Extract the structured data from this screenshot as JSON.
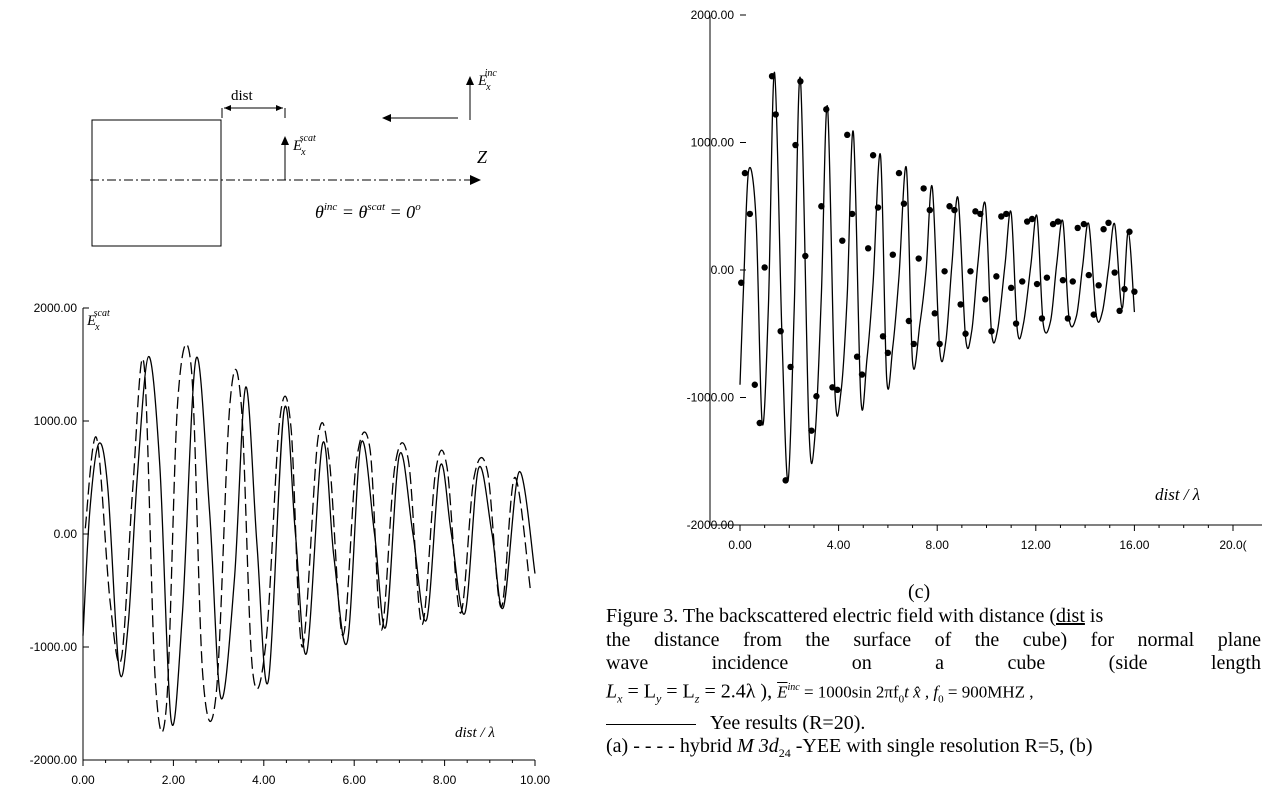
{
  "diagram": {
    "dist_label": "dist",
    "e_scat_label": "E",
    "e_scat_sub": "x",
    "e_scat_sup": "scat",
    "e_inc_label": "E",
    "e_inc_sub": "x",
    "e_inc_sup": "inc",
    "z_label": "Z",
    "angle_eq": "θ",
    "angle_eq_sup1": "inc",
    "angle_eq_mid": " = θ",
    "angle_eq_sup2": "scat",
    "angle_eq_end": " = 0",
    "angle_eq_deg": "o"
  },
  "chart_data": [
    {
      "type": "line",
      "panel": "left",
      "ylabel": "E",
      "ylabel_sub": "x",
      "ylabel_sup": "scat",
      "xlabel": "dist / λ",
      "xlim": [
        0,
        10
      ],
      "ylim": [
        -2000,
        2000
      ],
      "xticks": [
        "0.00",
        "2.00",
        "4.00",
        "6.00",
        "8.00",
        "10.00"
      ],
      "yticks": [
        "2000.00",
        "1000.00",
        "0.00",
        "-1000.00",
        "-2000.00"
      ],
      "series": [
        {
          "style": "solid",
          "x": [
            0,
            0.15,
            0.35,
            0.55,
            0.8,
            1.0,
            1.2,
            1.45,
            1.7,
            1.95,
            2.2,
            2.5,
            2.8,
            3.05,
            3.35,
            3.6,
            3.85,
            4.1,
            4.45,
            4.7,
            4.95,
            5.3,
            5.55,
            5.85,
            6.15,
            6.45,
            6.7,
            7.0,
            7.3,
            7.6,
            7.9,
            8.15,
            8.45,
            8.75,
            9.05,
            9.3,
            9.65,
            10.0
          ],
          "y": [
            -900,
            200,
            800,
            400,
            -1200,
            -800,
            500,
            1570,
            600,
            -1650,
            -700,
            1550,
            200,
            -1450,
            -400,
            1300,
            -100,
            -1300,
            1100,
            0,
            -1050,
            800,
            -200,
            -950,
            800,
            0,
            -820,
            700,
            0,
            -760,
            600,
            0,
            -700,
            580,
            0,
            -650,
            550,
            -350
          ]
        },
        {
          "style": "dashed",
          "x": [
            0.05,
            0.3,
            0.6,
            0.85,
            1.1,
            1.35,
            1.6,
            1.85,
            2.1,
            2.4,
            2.65,
            2.95,
            3.25,
            3.5,
            3.75,
            4.05,
            4.35,
            4.6,
            4.85,
            5.2,
            5.45,
            5.75,
            6.05,
            6.35,
            6.6,
            6.9,
            7.2,
            7.5,
            7.8,
            8.05,
            8.35,
            8.65,
            8.95,
            9.25,
            9.55,
            9.9
          ],
          "y": [
            50,
            850,
            -600,
            -1100,
            400,
            1500,
            -1300,
            -1500,
            1200,
            1450,
            -1250,
            -1400,
            1150,
            1150,
            -1200,
            -950,
            1000,
            950,
            -1000,
            850,
            650,
            -900,
            650,
            750,
            -850,
            600,
            650,
            -800,
            550,
            600,
            -700,
            500,
            550,
            -650,
            500,
            -500
          ]
        }
      ]
    },
    {
      "type": "line",
      "panel": "right",
      "xlabel": "dist / λ",
      "xlim": [
        0,
        20
      ],
      "ylim": [
        -2000,
        2000
      ],
      "xticks": [
        "0.00",
        "4.00",
        "8.00",
        "12.00",
        "16.00",
        "20.0("
      ],
      "yticks": [
        "2000.00",
        "1000.00",
        "0.00",
        "-1000.00",
        "-2000.00"
      ],
      "series": [
        {
          "style": "solid-with-points",
          "x": [
            0,
            0.15,
            0.35,
            0.65,
            0.9,
            1.15,
            1.4,
            1.7,
            1.95,
            2.2,
            2.45,
            2.8,
            3.05,
            3.3,
            3.55,
            3.85,
            4.1,
            4.35,
            4.6,
            4.9,
            5.15,
            5.4,
            5.7,
            5.95,
            6.2,
            6.45,
            6.75,
            7.0,
            7.3,
            7.55,
            7.8,
            8.1,
            8.35,
            8.6,
            8.85,
            9.15,
            9.4,
            9.65,
            9.95,
            10.2,
            10.45,
            10.75,
            11.0,
            11.25,
            11.5,
            11.8,
            12.05,
            12.3,
            12.6,
            12.85,
            13.1,
            13.35,
            13.65,
            13.9,
            14.15,
            14.45,
            14.7,
            14.95,
            15.2,
            15.5,
            15.75,
            16.0
          ],
          "y": [
            -900,
            -100,
            780,
            400,
            -1200,
            -300,
            1550,
            -500,
            -1650,
            -300,
            1500,
            -1260,
            -1280,
            -200,
            1280,
            -950,
            -950,
            -200,
            1080,
            -1000,
            -700,
            -100,
            900,
            -850,
            -600,
            -50,
            800,
            -720,
            -420,
            0,
            650,
            -620,
            -560,
            50,
            560,
            -530,
            -480,
            50,
            520,
            -480,
            -470,
            40,
            450,
            -470,
            -420,
            40,
            420,
            -420,
            -400,
            50,
            380,
            -380,
            -360,
            30,
            360,
            -350,
            -330,
            10,
            360,
            -300,
            300,
            -330
          ]
        },
        {
          "points_x": [
            0.05,
            0.2,
            0.4,
            0.6,
            0.8,
            1.0,
            1.3,
            1.45,
            1.65,
            1.85,
            2.05,
            2.25,
            2.45,
            2.65,
            2.9,
            3.1,
            3.3,
            3.5,
            3.75,
            3.95,
            4.15,
            4.35,
            4.55,
            4.75,
            4.95,
            5.2,
            5.4,
            5.6,
            5.8,
            6.0,
            6.2,
            6.45,
            6.65,
            6.85,
            7.05,
            7.25,
            7.45,
            7.7,
            7.9,
            8.1,
            8.3,
            8.5,
            8.7,
            8.95,
            9.15,
            9.35,
            9.55,
            9.75,
            9.95,
            10.2,
            10.4,
            10.6,
            10.8,
            11.0,
            11.2,
            11.45,
            11.65,
            11.85,
            12.05,
            12.25,
            12.45,
            12.7,
            12.9,
            13.1,
            13.3,
            13.5,
            13.7,
            13.95,
            14.15,
            14.35,
            14.55,
            14.75,
            14.95,
            15.2,
            15.4,
            15.6,
            15.8,
            16.0
          ],
          "points_y": [
            -100,
            760,
            440,
            -900,
            -1200,
            20,
            1520,
            1220,
            -480,
            -1650,
            -760,
            980,
            1480,
            110,
            -1260,
            -990,
            500,
            1260,
            -920,
            -940,
            230,
            1060,
            440,
            -680,
            -820,
            170,
            900,
            490,
            -520,
            -650,
            120,
            760,
            520,
            -400,
            -580,
            90,
            640,
            470,
            -340,
            -580,
            -10,
            500,
            470,
            -270,
            -500,
            -10,
            460,
            440,
            -230,
            -480,
            -50,
            420,
            440,
            -140,
            -420,
            -90,
            380,
            400,
            -110,
            -380,
            -60,
            360,
            380,
            -80,
            -380,
            -90,
            330,
            360,
            -40,
            -350,
            -120,
            320,
            370,
            -20,
            -320,
            -150,
            300,
            -170
          ]
        }
      ]
    }
  ],
  "panel_label": "(c)",
  "caption": {
    "line1": "Figure 3. The backscattered electric field with distance (",
    "line1_u": "dist",
    "line1_end": " is",
    "line2": "the distance from the surface of the cube) for normal plane",
    "line3_words": [
      "wave",
      "incidence",
      "on",
      "a",
      "cube",
      "(side",
      "length"
    ],
    "line4": "L",
    "line4_b": " = L",
    "line4_c": " = L",
    "line4_d": " = 2.4λ ), ",
    "line4_e": "E",
    "line4_f": " = 1000sin 2πf",
    "line4_g": "t x̂ , f",
    "line4_h": " = 900MHZ ,",
    "line5": "Yee results (R=20).",
    "line6": "(a) - - - -  hybrid ",
    "line6_m": "M 3d",
    "line6_sub": "24",
    "line6_end": " -YEE with single resolution R=5,  (b)"
  }
}
